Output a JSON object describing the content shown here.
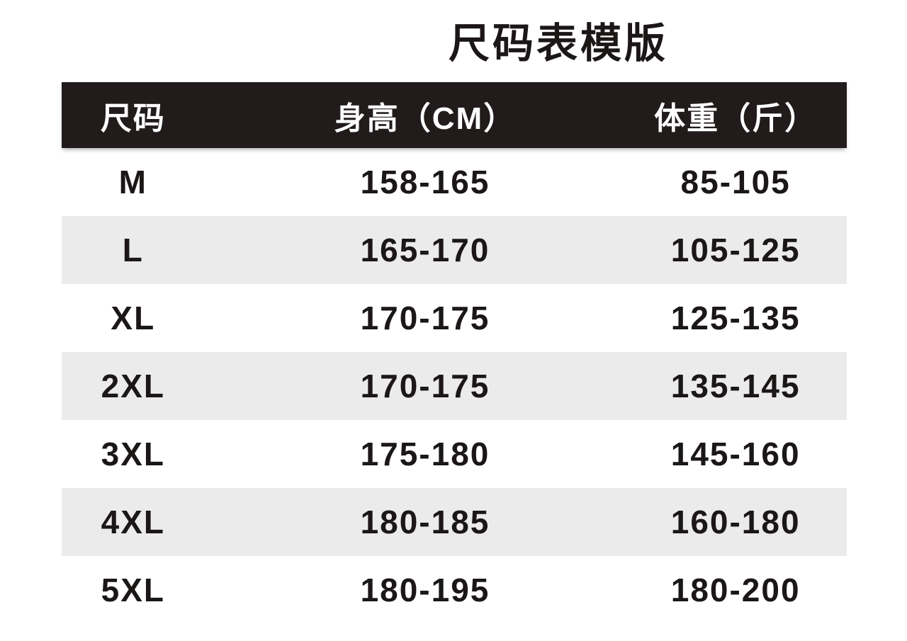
{
  "title": "尺码表模版",
  "table": {
    "headers": [
      "尺码",
      "身高（CM）",
      "体重（斤）"
    ],
    "rows": [
      {
        "size": "M",
        "height": "158-165",
        "weight": "85-105"
      },
      {
        "size": "L",
        "height": "165-170",
        "weight": "105-125"
      },
      {
        "size": "XL",
        "height": "170-175",
        "weight": "125-135"
      },
      {
        "size": "2XL",
        "height": "170-175",
        "weight": "135-145"
      },
      {
        "size": "3XL",
        "height": "175-180",
        "weight": "145-160"
      },
      {
        "size": "4XL",
        "height": "180-185",
        "weight": "160-180"
      },
      {
        "size": "5XL",
        "height": "180-195",
        "weight": "180-200"
      }
    ]
  },
  "colors": {
    "background": "#ffffff",
    "header_bg": "#221b1b",
    "header_text": "#ffffff",
    "row_stripe": "#ebebeb",
    "text_color": "#1c1717"
  },
  "chart_data": {
    "type": "table",
    "title": "尺码表模版",
    "columns": [
      "尺码",
      "身高（CM）",
      "体重（斤）"
    ],
    "rows": [
      [
        "M",
        "158-165",
        "85-105"
      ],
      [
        "L",
        "165-170",
        "105-125"
      ],
      [
        "XL",
        "170-175",
        "125-135"
      ],
      [
        "2XL",
        "170-175",
        "135-145"
      ],
      [
        "3XL",
        "175-180",
        "145-160"
      ],
      [
        "4XL",
        "180-185",
        "160-180"
      ],
      [
        "5XL",
        "180-195",
        "180-200"
      ]
    ],
    "layout": {
      "header_style": "black bar with white bold text",
      "row_striping": "alternating white / light gray, starting white",
      "alignment": "all columns centered"
    }
  }
}
